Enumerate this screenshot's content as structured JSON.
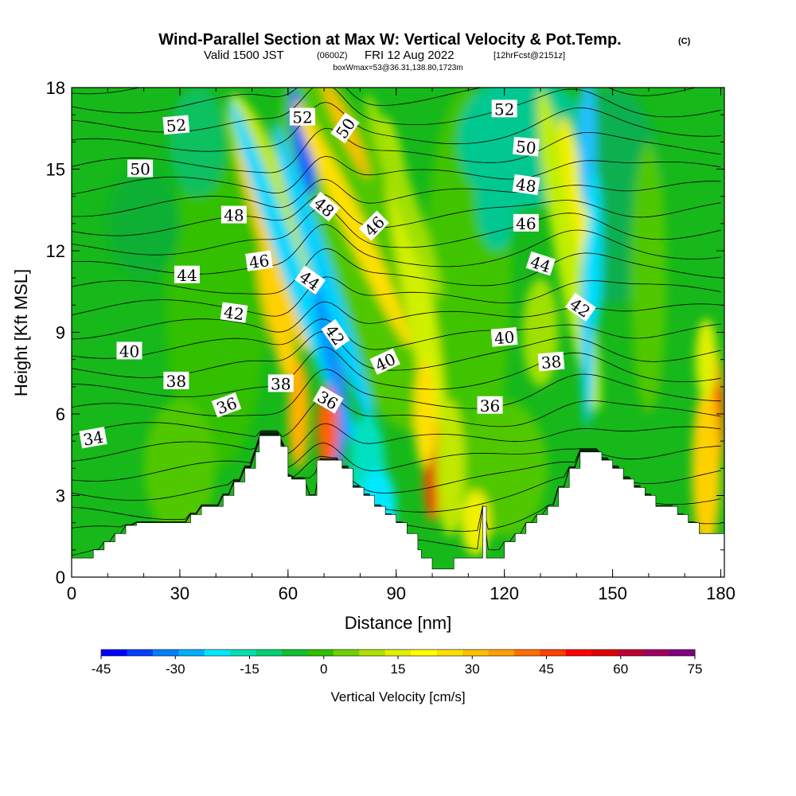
{
  "title": {
    "main": "Wind-Parallel Section at Max W: Vertical Velocity & Pot.Temp.",
    "copyright": "(C)",
    "valid_prefix": "Valid 1500 JST",
    "valid_z": "(0600Z)",
    "valid_date": "FRI 12 Aug 2022",
    "forecast": "[12hrFcst@2151z]",
    "box": "boxWmax=53@36.31,138.80,1723m"
  },
  "chart_data": {
    "type": "heatmap",
    "description_fields": "filled vertical-velocity field with potential-temperature contours over terrain",
    "xlabel": "Distance [nm]",
    "ylabel": "Height [Kft MSL]",
    "xlim": [
      0,
      181
    ],
    "ylim": [
      0,
      18
    ],
    "x_ticks": [
      0,
      30,
      60,
      90,
      120,
      150,
      180
    ],
    "y_ticks": [
      0,
      3,
      6,
      9,
      12,
      15,
      18
    ],
    "colorbar": {
      "title": "Vertical Velocity [cm/s]",
      "ticks": [
        -45,
        -30,
        -15,
        0,
        15,
        30,
        45,
        60,
        75
      ],
      "range": [
        -45,
        75
      ],
      "colors": [
        "#0000ff",
        "#0040ff",
        "#0080ff",
        "#00b0ff",
        "#00e8ff",
        "#00e0b0",
        "#00d070",
        "#10c030",
        "#30c000",
        "#70d000",
        "#b0e000",
        "#e0f000",
        "#ffff00",
        "#ffe000",
        "#ffc000",
        "#ffa000",
        "#ff7000",
        "#ff4000",
        "#ff0000",
        "#e00000",
        "#c00030",
        "#a00060",
        "#800080"
      ]
    },
    "terrain": [
      [
        0,
        0.7
      ],
      [
        6,
        0.7
      ],
      [
        6,
        1.0
      ],
      [
        9,
        1.0
      ],
      [
        9,
        1.3
      ],
      [
        12,
        1.3
      ],
      [
        12,
        1.6
      ],
      [
        15,
        1.6
      ],
      [
        15,
        1.9
      ],
      [
        18,
        1.9
      ],
      [
        18,
        2.0
      ],
      [
        33,
        2.0
      ],
      [
        33,
        2.3
      ],
      [
        36,
        2.3
      ],
      [
        36,
        2.6
      ],
      [
        42,
        2.6
      ],
      [
        42,
        3.0
      ],
      [
        45,
        3.0
      ],
      [
        45,
        3.5
      ],
      [
        48,
        3.5
      ],
      [
        48,
        4.0
      ],
      [
        51,
        4.0
      ],
      [
        51,
        4.6
      ],
      [
        52,
        4.6
      ],
      [
        52,
        5.2
      ],
      [
        58,
        5.2
      ],
      [
        58,
        4.8
      ],
      [
        60,
        4.8
      ],
      [
        60,
        3.7
      ],
      [
        61,
        3.7
      ],
      [
        61,
        3.6
      ],
      [
        65,
        3.6
      ],
      [
        65,
        3.0
      ],
      [
        68,
        3.0
      ],
      [
        68,
        4.3
      ],
      [
        75,
        4.3
      ],
      [
        75,
        4.0
      ],
      [
        78,
        4.0
      ],
      [
        78,
        3.3
      ],
      [
        81,
        3.3
      ],
      [
        81,
        3.0
      ],
      [
        84,
        3.0
      ],
      [
        84,
        2.6
      ],
      [
        87,
        2.6
      ],
      [
        87,
        2.3
      ],
      [
        90,
        2.3
      ],
      [
        90,
        2.0
      ],
      [
        93,
        2.0
      ],
      [
        93,
        1.6
      ],
      [
        96,
        1.6
      ],
      [
        96,
        1.0
      ],
      [
        97,
        1.0
      ],
      [
        97,
        0.7
      ],
      [
        100,
        0.7
      ],
      [
        100,
        0.3
      ],
      [
        106,
        0.3
      ],
      [
        106,
        0.7
      ],
      [
        114,
        0.7
      ],
      [
        114,
        2.6
      ],
      [
        115,
        2.6
      ],
      [
        115,
        0.7
      ],
      [
        120,
        0.7
      ],
      [
        120,
        1.3
      ],
      [
        123,
        1.3
      ],
      [
        123,
        1.6
      ],
      [
        126,
        1.6
      ],
      [
        126,
        2.0
      ],
      [
        129,
        2.0
      ],
      [
        129,
        2.3
      ],
      [
        132,
        2.3
      ],
      [
        132,
        2.6
      ],
      [
        135,
        2.6
      ],
      [
        135,
        3.3
      ],
      [
        138,
        3.3
      ],
      [
        138,
        4.0
      ],
      [
        141,
        4.0
      ],
      [
        141,
        4.6
      ],
      [
        147,
        4.6
      ],
      [
        147,
        4.3
      ],
      [
        150,
        4.3
      ],
      [
        150,
        4.0
      ],
      [
        153,
        4.0
      ],
      [
        153,
        3.6
      ],
      [
        156,
        3.6
      ],
      [
        156,
        3.3
      ],
      [
        159,
        3.3
      ],
      [
        159,
        3.0
      ],
      [
        162,
        3.0
      ],
      [
        162,
        2.6
      ],
      [
        168,
        2.6
      ],
      [
        168,
        2.3
      ],
      [
        171,
        2.3
      ],
      [
        171,
        2.0
      ],
      [
        174,
        2.0
      ],
      [
        174,
        1.6
      ],
      [
        181,
        1.6
      ]
    ],
    "theta_labels": [
      {
        "text": "52",
        "x": 29,
        "y": 16.6,
        "angle": -5
      },
      {
        "text": "52",
        "x": 64,
        "y": 16.9,
        "angle": 0
      },
      {
        "text": "50",
        "x": 76,
        "y": 16.5,
        "angle": -55
      },
      {
        "text": "52",
        "x": 120,
        "y": 17.2,
        "angle": 0
      },
      {
        "text": "50",
        "x": 19,
        "y": 15.0,
        "angle": 0
      },
      {
        "text": "50",
        "x": 126,
        "y": 15.8,
        "angle": 5
      },
      {
        "text": "48",
        "x": 126,
        "y": 14.4,
        "angle": 8
      },
      {
        "text": "48",
        "x": 70,
        "y": 13.6,
        "angle": 40
      },
      {
        "text": "48",
        "x": 45,
        "y": 13.3,
        "angle": 0
      },
      {
        "text": "46",
        "x": 84,
        "y": 12.9,
        "angle": -45
      },
      {
        "text": "46",
        "x": 126,
        "y": 13.0,
        "angle": 0
      },
      {
        "text": "46",
        "x": 52,
        "y": 11.6,
        "angle": -8
      },
      {
        "text": "44",
        "x": 130,
        "y": 11.5,
        "angle": 18
      },
      {
        "text": "44",
        "x": 66,
        "y": 10.9,
        "angle": 35
      },
      {
        "text": "44",
        "x": 32,
        "y": 11.1,
        "angle": 0
      },
      {
        "text": "42",
        "x": 141,
        "y": 9.9,
        "angle": 35
      },
      {
        "text": "42",
        "x": 45,
        "y": 9.7,
        "angle": 8
      },
      {
        "text": "42",
        "x": 73,
        "y": 8.9,
        "angle": 55
      },
      {
        "text": "40",
        "x": 120,
        "y": 8.8,
        "angle": -5
      },
      {
        "text": "40",
        "x": 87,
        "y": 7.9,
        "angle": -25
      },
      {
        "text": "40",
        "x": 16,
        "y": 8.3,
        "angle": 0
      },
      {
        "text": "38",
        "x": 133,
        "y": 7.9,
        "angle": -5
      },
      {
        "text": "38",
        "x": 29,
        "y": 7.2,
        "angle": 0
      },
      {
        "text": "38",
        "x": 58,
        "y": 7.1,
        "angle": 0
      },
      {
        "text": "36",
        "x": 71,
        "y": 6.5,
        "angle": 30
      },
      {
        "text": "36",
        "x": 43,
        "y": 6.3,
        "angle": -20
      },
      {
        "text": "36",
        "x": 116,
        "y": 6.3,
        "angle": 0
      },
      {
        "text": "34",
        "x": 6,
        "y": 5.1,
        "angle": -10
      }
    ]
  }
}
